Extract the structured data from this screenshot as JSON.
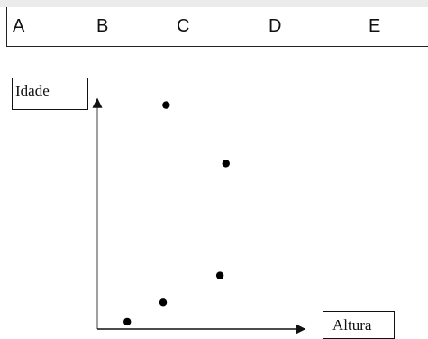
{
  "options": [
    "A",
    "B",
    "C",
    "D",
    "E"
  ],
  "chart_data": {
    "type": "scatter",
    "xlabel": "Altura",
    "ylabel": "Idade",
    "grid": false,
    "xlim": [
      0,
      10
    ],
    "ylim": [
      0,
      10
    ],
    "points": [
      {
        "x": 1.0,
        "y": 0.3
      },
      {
        "x": 2.2,
        "y": 1.1
      },
      {
        "x": 2.3,
        "y": 9.2
      },
      {
        "x": 4.1,
        "y": 2.2
      },
      {
        "x": 4.3,
        "y": 6.8
      }
    ]
  }
}
